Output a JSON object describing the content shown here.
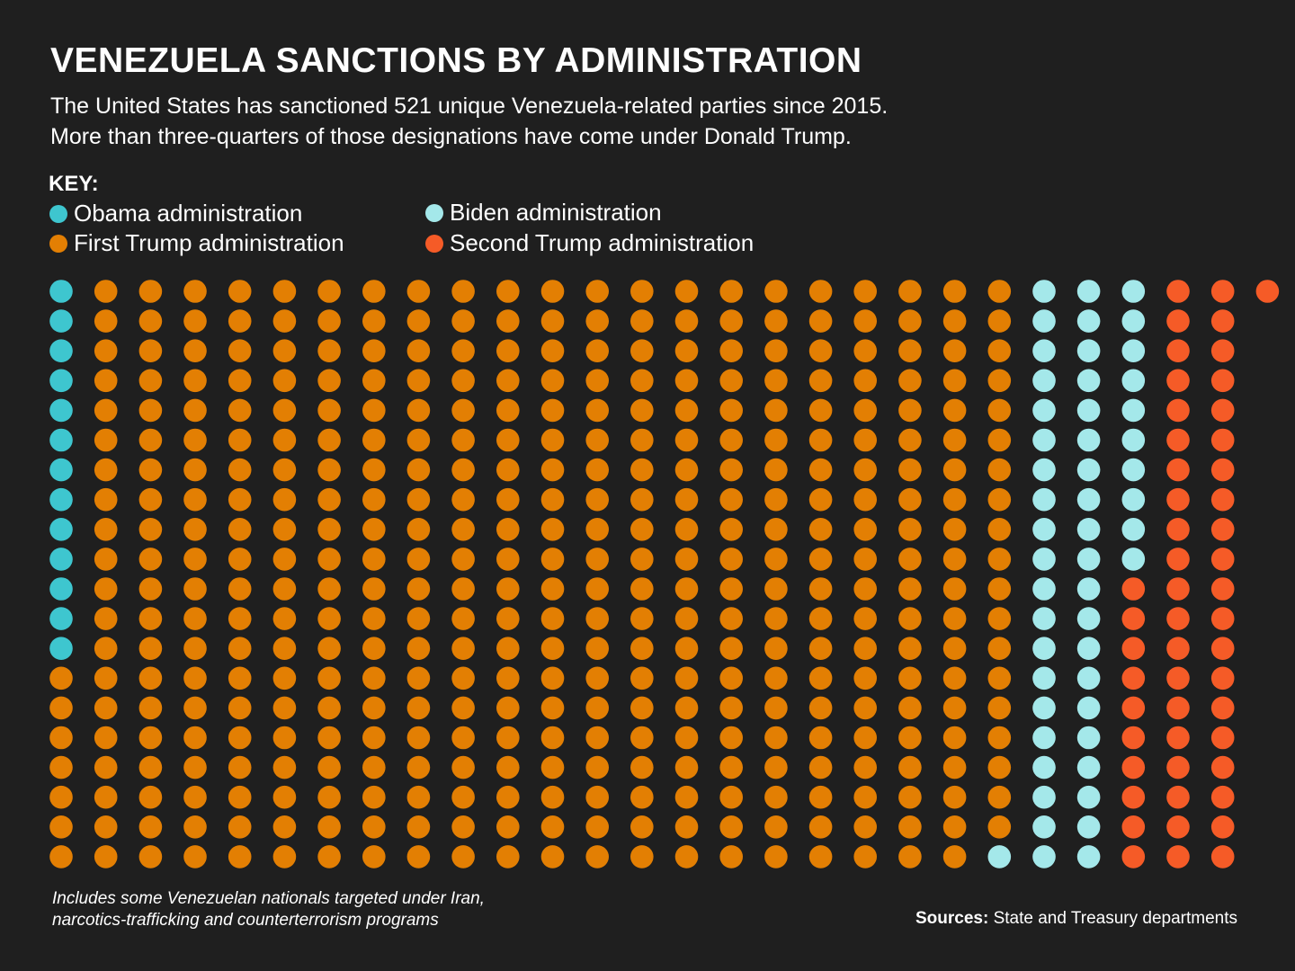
{
  "title": "VENEZUELA SANCTIONS BY ADMINISTRATION",
  "subtitle_lines": [
    "The United States has sanctioned 521 unique Venezuela-related parties since 2015.",
    "More than three-quarters of those designations have come under Donald Trump."
  ],
  "key_label": "KEY:",
  "legend": [
    {
      "label": "Obama administration",
      "color": "#3ec6cf"
    },
    {
      "label": "Biden administration",
      "color": "#a4e8ea"
    },
    {
      "label": "First Trump administration",
      "color": "#e37f03"
    },
    {
      "label": "Second Trump administration",
      "color": "#f55b27"
    }
  ],
  "note_lines": [
    "Includes some Venezuelan nationals targeted under Iran,",
    "narcotics-trafficking and counterterrorism programs"
  ],
  "sources": {
    "label": "Sources:",
    "text": "State and Treasury departments"
  },
  "chart_data": {
    "type": "waffle",
    "title": "VENEZUELA SANCTIONS BY ADMINISTRATION",
    "fill_order": "column-major, top-to-bottom then left-to-right",
    "rows_per_column": 20,
    "series": [
      {
        "name": "Obama administration",
        "value": 13,
        "color": "#3ec6cf"
      },
      {
        "name": "First Trump administration",
        "value": 426,
        "color": "#e37f03"
      },
      {
        "name": "Biden administration",
        "value": 51,
        "color": "#a4e8ea"
      },
      {
        "name": "Second Trump administration",
        "value": 51,
        "color": "#f55b27"
      }
    ],
    "legend_position": "top-left"
  }
}
